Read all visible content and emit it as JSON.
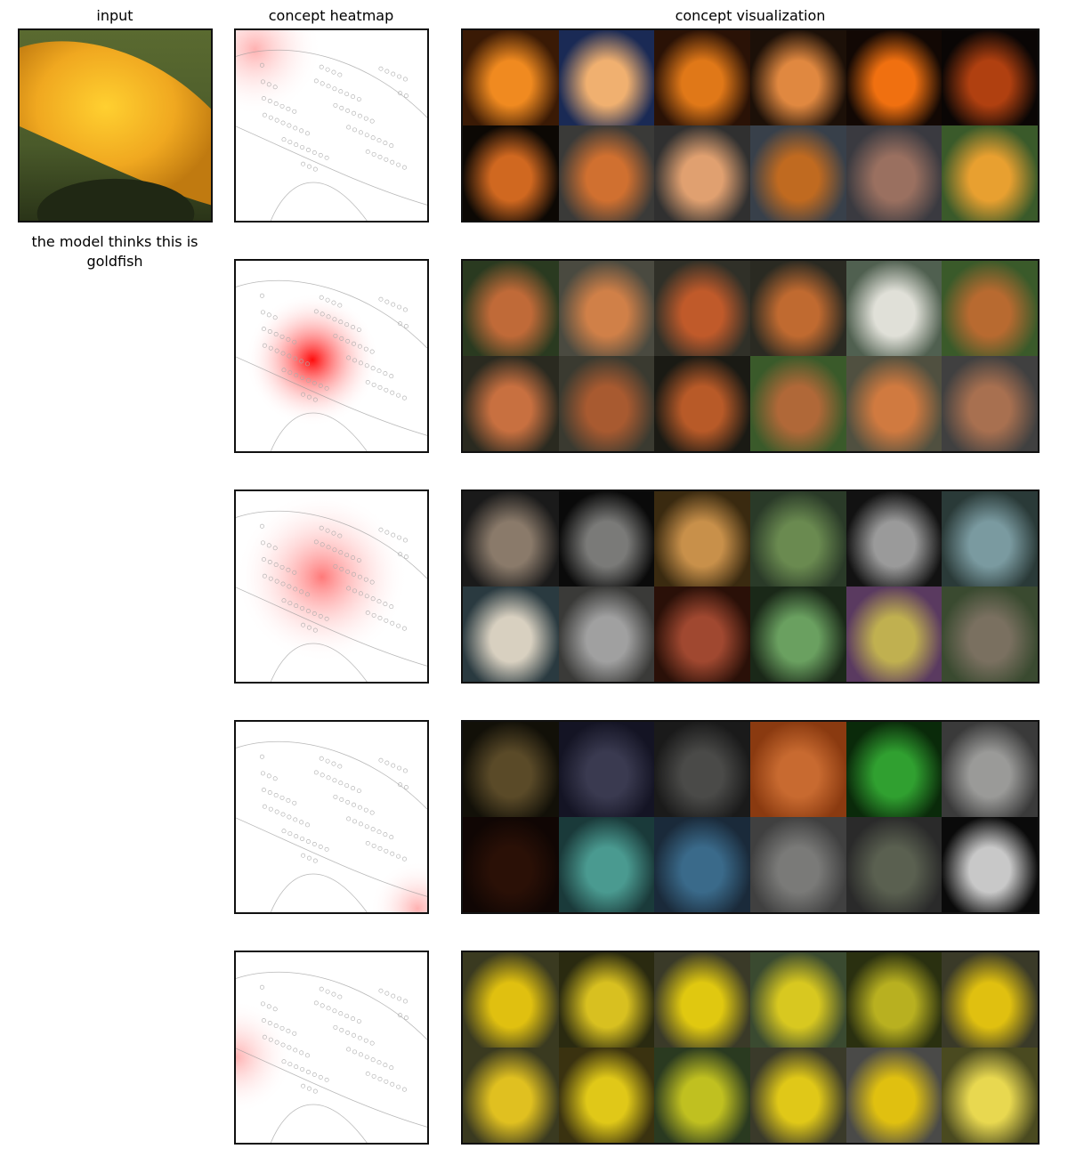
{
  "columns": {
    "input": "input",
    "heatmap": "concept heatmap",
    "visualization": "concept visualization"
  },
  "caption": "the model thinks this is goldfish",
  "rows": [
    {
      "heat": "edge",
      "tiles": [
        [
          "#3a1a05",
          "#f08a20"
        ],
        [
          "#1a2a55",
          "#f0b070"
        ],
        [
          "#2a1206",
          "#e07818"
        ],
        [
          "#1c1008",
          "#e08840"
        ],
        [
          "#120804",
          "#f07010"
        ],
        [
          "#0a0605",
          "#b04010"
        ],
        [
          "#0c0804",
          "#d06820"
        ],
        [
          "#3a3a38",
          "#d07030"
        ],
        [
          "#303030",
          "#e0a070"
        ],
        [
          "#38404a",
          "#c06a20"
        ],
        [
          "#3a3a40",
          "#9a7060"
        ],
        [
          "#3a5a2a",
          "#e8a030"
        ]
      ]
    },
    {
      "heat": "center",
      "tiles": [
        [
          "#2a3a20",
          "#c06a38"
        ],
        [
          "#4a4a40",
          "#d08048"
        ],
        [
          "#303028",
          "#c05a2a"
        ],
        [
          "#2a2a22",
          "#c06a30"
        ],
        [
          "#506050",
          "#e0e0d8"
        ],
        [
          "#3a5a2a",
          "#b86a30"
        ],
        [
          "#2a2a20",
          "#c87040"
        ],
        [
          "#3a3a30",
          "#a85a30"
        ],
        [
          "#1a1a14",
          "#b85a28"
        ],
        [
          "#3a5a2a",
          "#b06838"
        ],
        [
          "#505040",
          "#d07a40"
        ],
        [
          "#404040",
          "#a87050"
        ]
      ]
    },
    {
      "heat": "mid",
      "tiles": [
        [
          "#1a1a1a",
          "#8a7a6a"
        ],
        [
          "#0a0a0a",
          "#7a7a78"
        ],
        [
          "#3a2a10",
          "#c8904a"
        ],
        [
          "#2a3a28",
          "#6a8a50"
        ],
        [
          "#121212",
          "#9a9a9a"
        ],
        [
          "#2a3a38",
          "#7a9aa0"
        ],
        [
          "#2a3a40",
          "#d8d0c0"
        ],
        [
          "#3a3a38",
          "#a0a0a0"
        ],
        [
          "#2a1008",
          "#a04830"
        ],
        [
          "#1a2818",
          "#6aa060"
        ],
        [
          "#5a3a60",
          "#c0b050"
        ],
        [
          "#3a4a30",
          "#7a7060"
        ]
      ]
    },
    {
      "heat": "corner",
      "tiles": [
        [
          "#121008",
          "#5a4a28"
        ],
        [
          "#141424",
          "#3a3a50"
        ],
        [
          "#1a1a1a",
          "#4a4a48"
        ],
        [
          "#8a3a10",
          "#c86a30"
        ],
        [
          "#0a2a0a",
          "#30a030"
        ],
        [
          "#3a3a3a",
          "#9a9a98"
        ],
        [
          "#100604",
          "#2a1006"
        ],
        [
          "#1a3a3a",
          "#4a9a90"
        ],
        [
          "#1a2a3a",
          "#3a6a8a"
        ],
        [
          "#404040",
          "#7a7a78"
        ],
        [
          "#2a2a2a",
          "#5a6050"
        ],
        [
          "#0a0a0a",
          "#c8c8c8"
        ]
      ]
    },
    {
      "heat": "left",
      "tiles": [
        [
          "#3a3a20",
          "#e0c010"
        ],
        [
          "#2a2a10",
          "#d8c020"
        ],
        [
          "#3a3a28",
          "#e0c810"
        ],
        [
          "#3a4a30",
          "#d8c820"
        ],
        [
          "#2a3010",
          "#b8b020"
        ],
        [
          "#3a3a28",
          "#e0c010"
        ],
        [
          "#3a3a20",
          "#e0c020"
        ],
        [
          "#3a3210",
          "#e0c818"
        ],
        [
          "#2a3a20",
          "#c0c020"
        ],
        [
          "#3a3a2a",
          "#e0c818"
        ],
        [
          "#4a4a48",
          "#e0c010"
        ],
        [
          "#4a4a20",
          "#e8d850"
        ]
      ]
    }
  ]
}
